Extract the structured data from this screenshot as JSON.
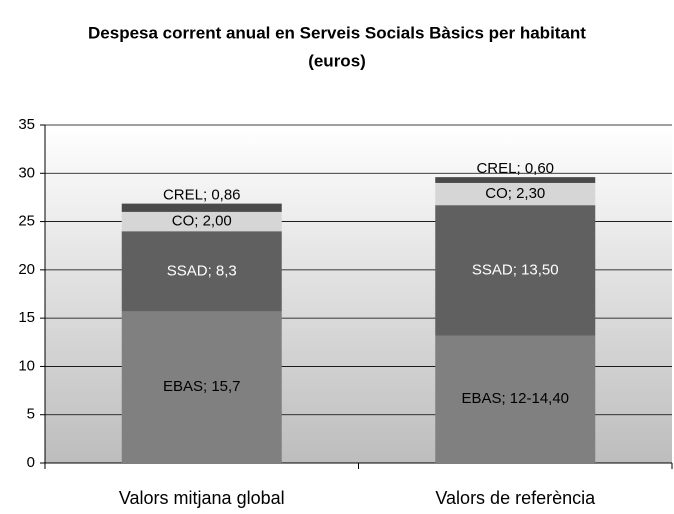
{
  "chart_data": {
    "type": "stacked_bar",
    "title": [
      "Despesa corrent anual en Serveis Socials Bàsics per habitant",
      "(euros)"
    ],
    "categories": [
      "Valors mitjana global",
      "Valors de referència"
    ],
    "series": [
      {
        "name": "EBAS",
        "color": "#808080",
        "label_color": "#000000",
        "values": [
          15.7,
          13.2
        ],
        "value_labels": [
          "EBAS; 15,7",
          "EBAS; 12-14,40"
        ]
      },
      {
        "name": "SSAD",
        "color": "#606060",
        "label_color": "#ffffff",
        "values": [
          8.3,
          13.5
        ],
        "value_labels": [
          "SSAD; 8,3",
          "SSAD; 13,50"
        ]
      },
      {
        "name": "CO",
        "color": "#d6d6d6",
        "label_color": "#000000",
        "values": [
          2.0,
          2.3
        ],
        "value_labels": [
          "CO; 2,00",
          "CO; 2,30"
        ]
      },
      {
        "name": "CREL",
        "color": "#4a4a4a",
        "label_color": "#000000",
        "values": [
          0.86,
          0.6
        ],
        "value_labels": [
          "CREL; 0,86",
          "CREL; 0,60"
        ]
      }
    ],
    "ylim": [
      0,
      35
    ],
    "yticks": [
      0,
      5,
      10,
      15,
      20,
      25,
      30,
      35
    ],
    "grid": true
  }
}
